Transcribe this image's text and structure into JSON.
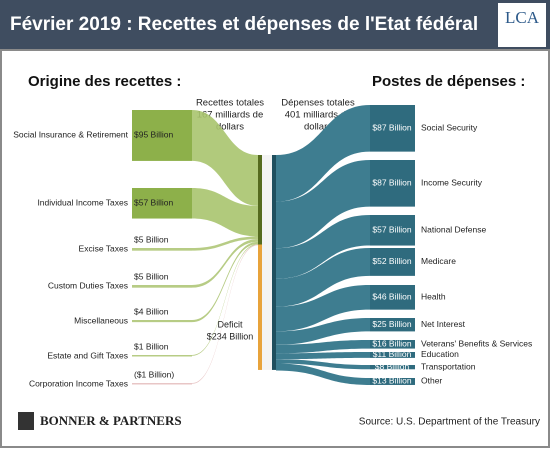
{
  "header": {
    "title": "Février 2019 : Recettes et dépenses de l'Etat fédéral",
    "logo": "LCA"
  },
  "headings": {
    "left": "Origine des recettes :",
    "right": "Postes de dépenses :"
  },
  "totals": {
    "revenue": {
      "lines": [
        "Recettes totales",
        "167 milliards de",
        "dollars"
      ],
      "value": 167
    },
    "spending": {
      "lines": [
        "Dépenses totales",
        "401 milliards de",
        "dollars"
      ],
      "value": 401
    }
  },
  "sources": [
    {
      "name": "Social Insurance & Retirement",
      "label": "$95 Billion",
      "value": 95
    },
    {
      "name": "Individual Income Taxes",
      "label": "$57 Billion",
      "value": 57
    },
    {
      "name": "Excise Taxes",
      "label": "$5 Billion",
      "value": 5
    },
    {
      "name": "Custom Duties Taxes",
      "label": "$5 Billion",
      "value": 5
    },
    {
      "name": "Miscellaneous",
      "label": "$4 Billion",
      "value": 4
    },
    {
      "name": "Estate and Gift Taxes",
      "label": "$1 Billion",
      "value": 1
    },
    {
      "name": "Corporation Income Taxes",
      "label": "($1 Billion)",
      "value": -1
    }
  ],
  "deficit": {
    "lines": [
      "Deficit",
      "$234 Billion"
    ],
    "value": 234
  },
  "expenses": [
    {
      "name": "Social Security",
      "label": "$87 Billion",
      "value": 87
    },
    {
      "name": "Income Security",
      "label": "$87 Billion",
      "value": 87
    },
    {
      "name": "National Defense",
      "label": "$57 Billion",
      "value": 57
    },
    {
      "name": "Medicare",
      "label": "$52 Billion",
      "value": 52
    },
    {
      "name": "Health",
      "label": "$46 Billion",
      "value": 46
    },
    {
      "name": "Net Interest",
      "label": "$25 Billion",
      "value": 25
    },
    {
      "name": "Veterans' Benefits & Services",
      "label": "$16 Billion",
      "value": 16
    },
    {
      "name": "Education",
      "label": "$11 Billion",
      "value": 11
    },
    {
      "name": "Transportation",
      "label": "$8 Billion",
      "value": 8
    },
    {
      "name": "Other",
      "label": "$13 Billion",
      "value": 13
    }
  ],
  "footer": {
    "brand": "BONNER & PARTNERS",
    "source": "Source:  U.S. Department of the Treasury"
  }
}
